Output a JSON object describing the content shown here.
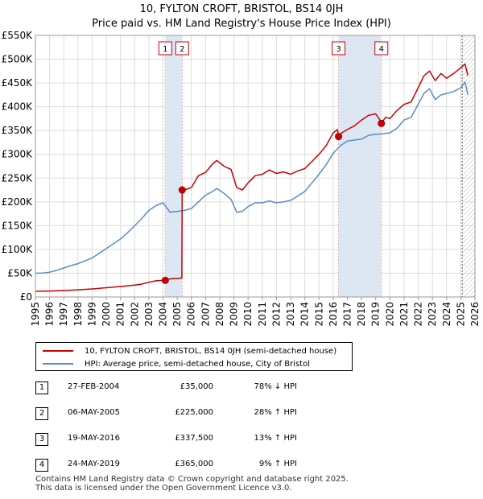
{
  "chart_data": {
    "type": "line",
    "title": [
      "10, FYLTON CROFT, BRISTOL, BS14 0JH",
      "Price paid vs. HM Land Registry's House Price Index (HPI)"
    ],
    "xlim": [
      1995,
      2026
    ],
    "ylim": [
      0,
      550000
    ],
    "y_ticks": [
      0,
      50000,
      100000,
      150000,
      200000,
      250000,
      300000,
      350000,
      400000,
      450000,
      500000,
      550000
    ],
    "y_tick_labels": [
      "£0",
      "£50K",
      "£100K",
      "£150K",
      "£200K",
      "£250K",
      "£300K",
      "£350K",
      "£400K",
      "£450K",
      "£500K",
      "£550K"
    ],
    "x_ticks": [
      1995,
      1996,
      1997,
      1998,
      1999,
      2000,
      2001,
      2002,
      2003,
      2004,
      2005,
      2006,
      2007,
      2008,
      2009,
      2010,
      2011,
      2012,
      2013,
      2014,
      2015,
      2016,
      2017,
      2018,
      2019,
      2020,
      2021,
      2022,
      2023,
      2024,
      2025,
      2026
    ],
    "x_tick_labels": [
      "1995",
      "1996",
      "1997",
      "1998",
      "1999",
      "2000",
      "2001",
      "2002",
      "2003",
      "2004",
      "2005",
      "2006",
      "2007",
      "2008",
      "2009",
      "2010",
      "2011",
      "2012",
      "2013",
      "2014",
      "2015",
      "2016",
      "2017",
      "2018",
      "2019",
      "2020",
      "2021",
      "2022",
      "2023",
      "2024",
      "2025",
      "2026"
    ],
    "grid": true,
    "shaded_ranges": [
      [
        2004.16,
        2005.35
      ],
      [
        2016.38,
        2019.4
      ]
    ],
    "forecast_start": 2025.1,
    "series": [
      {
        "name": "10, FYLTON CROFT, BRISTOL, BS14 0JH (semi-detached house)",
        "color": "#cc0000",
        "x": [
          1995,
          1996,
          1997,
          1998,
          1999,
          2000,
          2001,
          2002,
          2002.5,
          2003,
          2003.5,
          2004.0,
          2004.16,
          2004.5,
          2005.0,
          2005.33,
          2005.35,
          2005.6,
          2006.0,
          2006.5,
          2007.0,
          2007.5,
          2007.8,
          2008.3,
          2008.8,
          2009.2,
          2009.6,
          2010.0,
          2010.5,
          2011.0,
          2011.5,
          2012.0,
          2012.5,
          2013.0,
          2013.5,
          2014.0,
          2014.5,
          2015.0,
          2015.5,
          2016.0,
          2016.3,
          2016.38,
          2016.6,
          2017.0,
          2017.5,
          2018.0,
          2018.5,
          2019.0,
          2019.3,
          2019.4,
          2019.7,
          2020.0,
          2020.5,
          2021.0,
          2021.5,
          2022.0,
          2022.4,
          2022.8,
          2023.2,
          2023.6,
          2024.0,
          2024.5,
          2025.0,
          2025.3,
          2025.5
        ],
        "values": [
          12000,
          12500,
          13500,
          15000,
          17000,
          19500,
          22000,
          25000,
          27000,
          31000,
          34000,
          35000,
          35000,
          38000,
          39000,
          40000,
          225000,
          226000,
          230000,
          255000,
          262000,
          280000,
          287000,
          275000,
          268000,
          230000,
          225000,
          240000,
          255000,
          258000,
          267000,
          260000,
          263000,
          258000,
          265000,
          270000,
          285000,
          300000,
          318000,
          345000,
          352000,
          337500,
          345000,
          352000,
          360000,
          372000,
          382000,
          385000,
          372000,
          365000,
          378000,
          375000,
          392000,
          405000,
          410000,
          440000,
          465000,
          475000,
          455000,
          470000,
          460000,
          470000,
          482000,
          490000,
          465000
        ]
      },
      {
        "name": "HPI: Average price, semi-detached house, City of Bristol",
        "color": "#5b8cc4",
        "x": [
          1995,
          1995.5,
          1996,
          1996.5,
          1997,
          1997.5,
          1998,
          1998.5,
          1999,
          1999.5,
          2000,
          2000.5,
          2001,
          2001.5,
          2002,
          2002.5,
          2003,
          2003.5,
          2004,
          2004.5,
          2005,
          2005.5,
          2006,
          2006.5,
          2007,
          2007.5,
          2007.8,
          2008.3,
          2008.8,
          2009.2,
          2009.6,
          2010.0,
          2010.5,
          2011.0,
          2011.5,
          2012.0,
          2012.5,
          2013.0,
          2013.5,
          2014.0,
          2014.5,
          2015.0,
          2015.5,
          2016.0,
          2016.5,
          2017.0,
          2017.5,
          2018.0,
          2018.5,
          2019.0,
          2019.5,
          2020.0,
          2020.5,
          2021.0,
          2021.5,
          2022.0,
          2022.4,
          2022.8,
          2023.2,
          2023.6,
          2024.0,
          2024.5,
          2025.0,
          2025.3,
          2025.5
        ],
        "values": [
          50000,
          50500,
          52000,
          56000,
          61000,
          66000,
          70000,
          76000,
          82000,
          92000,
          102000,
          112000,
          122000,
          135000,
          150000,
          165000,
          182000,
          192000,
          198000,
          178000,
          180000,
          182000,
          186000,
          200000,
          214000,
          222000,
          228000,
          218000,
          205000,
          178000,
          180000,
          190000,
          198000,
          198000,
          202000,
          198000,
          200000,
          203000,
          212000,
          222000,
          240000,
          258000,
          278000,
          302000,
          318000,
          328000,
          330000,
          332000,
          340000,
          342000,
          343000,
          345000,
          355000,
          372000,
          378000,
          405000,
          428000,
          438000,
          415000,
          425000,
          428000,
          432000,
          440000,
          452000,
          425000
        ]
      }
    ],
    "sales": [
      {
        "label": "1",
        "date": "27-FEB-2004",
        "price": "£35,000",
        "hpi": "78% ↓ HPI",
        "x": 2004.16,
        "y": 35000
      },
      {
        "label": "2",
        "date": "06-MAY-2005",
        "price": "£225,000",
        "hpi": "28% ↑ HPI",
        "x": 2005.35,
        "y": 225000
      },
      {
        "label": "3",
        "date": "19-MAY-2016",
        "price": "£337,500",
        "hpi": "13% ↑ HPI",
        "x": 2016.38,
        "y": 337500
      },
      {
        "label": "4",
        "date": "24-MAY-2019",
        "price": "£365,000",
        "hpi": "9% ↑ HPI",
        "x": 2019.4,
        "y": 365000
      }
    ]
  },
  "legend": {
    "property_label": "10, FYLTON CROFT, BRISTOL, BS14 0JH (semi-detached house)",
    "hpi_label": "HPI: Average price, semi-detached house, City of Bristol"
  },
  "footer": {
    "line1": "Contains HM Land Registry data © Crown copyright and database right 2025.",
    "line2": "This data is licensed under the Open Government Licence v3.0."
  }
}
